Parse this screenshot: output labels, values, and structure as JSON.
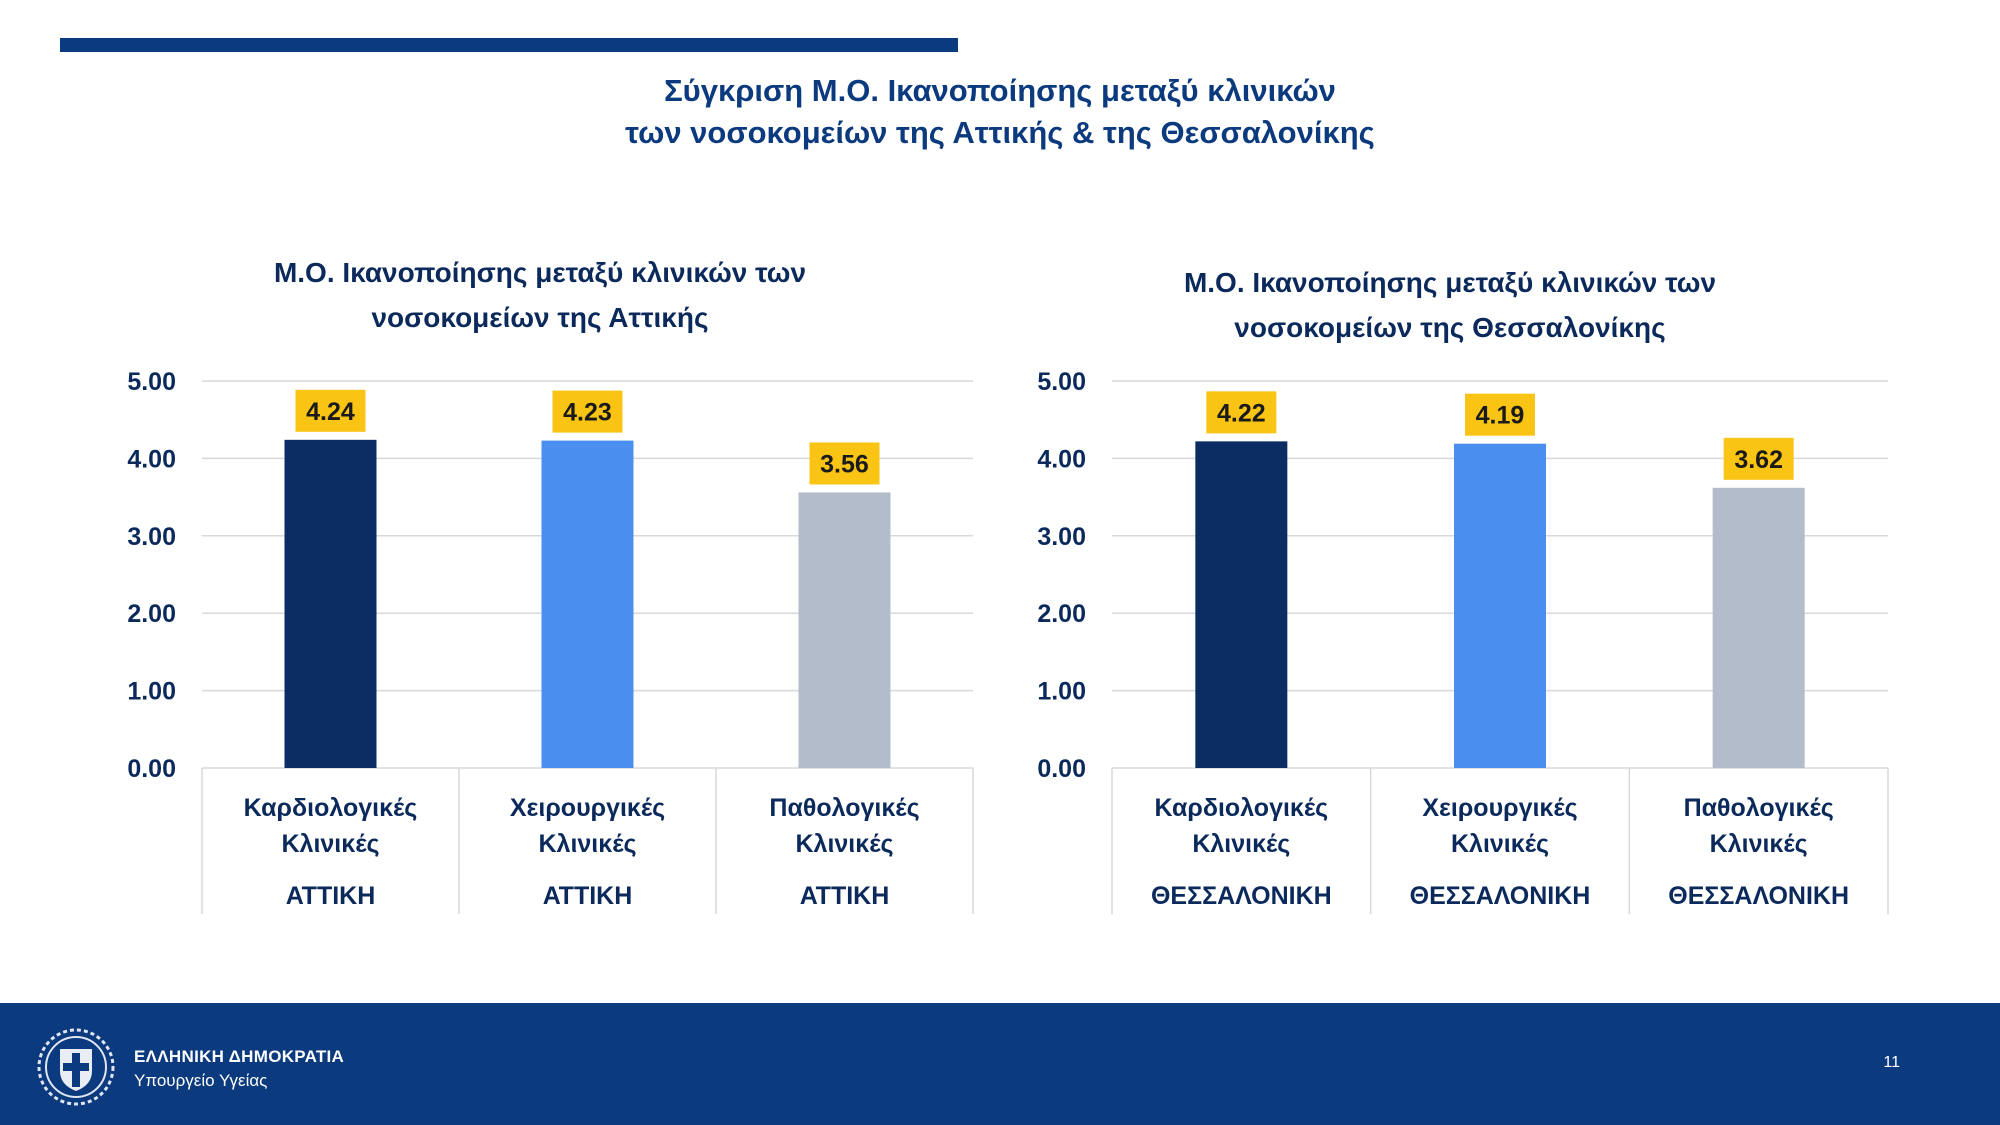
{
  "slide_title": {
    "line1": "Σύγκριση Μ.Ο. Ικανοποίησης μεταξύ κλινικών",
    "line2": "των νοσοκομείων της Αττικής & της Θεσσαλονίκης"
  },
  "colors": {
    "top_bar": "#0b3a7e",
    "footer": "#0b3a7e",
    "bar_cardiology": "#0b2d63",
    "bar_surgery": "#4a8fef",
    "bar_pathology": "#b3bccb",
    "data_label_bg": "#f9c413"
  },
  "chart_data": [
    {
      "type": "bar",
      "title_lines": [
        "Μ.Ο. Ικανοποίησης μεταξύ κλινικών των",
        "νοσοκομείων της Αττικής"
      ],
      "categories": [
        [
          "Καρδιολογικές",
          "Κλινικές"
        ],
        [
          "Χειρουργικές",
          "Κλινικές"
        ],
        [
          "Παθολογικές",
          "Κλινικές"
        ]
      ],
      "group_labels": [
        "ΑΤΤΙΚΗ",
        "ΑΤΤΙΚΗ",
        "ΑΤΤΙΚΗ"
      ],
      "values": [
        4.24,
        4.23,
        3.56
      ],
      "data_labels": [
        "4.24",
        "4.23",
        "3.56"
      ],
      "bar_colors": [
        "#0b2d63",
        "#4a8fef",
        "#b3bccb"
      ],
      "ylim": [
        0,
        5
      ],
      "yticks": [
        "0.00",
        "1.00",
        "2.00",
        "3.00",
        "4.00",
        "5.00"
      ],
      "grid": true,
      "xlabel": "",
      "ylabel": ""
    },
    {
      "type": "bar",
      "title_lines": [
        "Μ.Ο. Ικανοποίησης μεταξύ κλινικών των",
        "νοσοκομείων της Θεσσαλονίκης"
      ],
      "categories": [
        [
          "Καρδιολογικές",
          "Κλινικές"
        ],
        [
          "Χειρουργικές",
          "Κλινικές"
        ],
        [
          "Παθολογικές",
          "Κλινικές"
        ]
      ],
      "group_labels": [
        "ΘΕΣΣΑΛΟΝΙΚΗ",
        "ΘΕΣΣΑΛΟΝΙΚΗ",
        "ΘΕΣΣΑΛΟΝΙΚΗ"
      ],
      "values": [
        4.22,
        4.19,
        3.62
      ],
      "data_labels": [
        "4.22",
        "4.19",
        "3.62"
      ],
      "bar_colors": [
        "#0b2d63",
        "#4a8fef",
        "#b3bccb"
      ],
      "ylim": [
        0,
        5
      ],
      "yticks": [
        "0.00",
        "1.00",
        "2.00",
        "3.00",
        "4.00",
        "5.00"
      ],
      "grid": true,
      "xlabel": "",
      "ylabel": ""
    }
  ],
  "footer": {
    "line1": "ΕΛΛΗΝΙΚΗ ΔΗΜΟΚΡΑΤΙΑ",
    "line2": "Υπουργείο Υγείας",
    "page_number": "11",
    "emblem_icon": "greek-coat-of-arms-icon"
  }
}
